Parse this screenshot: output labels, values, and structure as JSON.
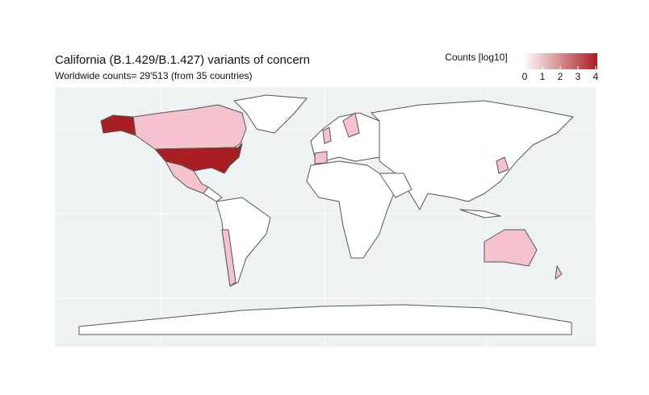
{
  "title": "California (B.1.429/B.1.427) variants of concern",
  "subtitle": "Worldwide counts=  29'513 (from 35 countries)",
  "legend": {
    "title": "Counts [log10]",
    "range": [
      0,
      4
    ],
    "ticks": [
      0,
      1,
      2,
      3,
      4
    ],
    "colors": [
      "#ffffff",
      "#a81e22"
    ]
  }
}
